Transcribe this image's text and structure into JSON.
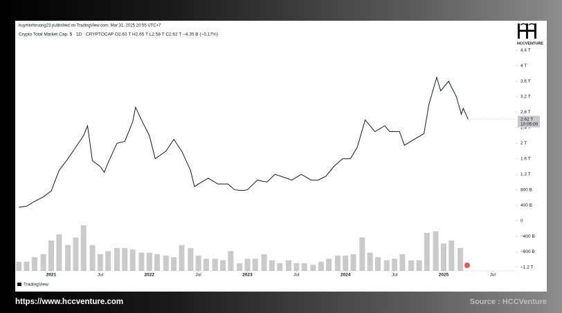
{
  "chart_data": {
    "type": "line",
    "publisher_line": "huyminhtruong23 published on TradingView.com, Mar 31, 2025 20:55 UTC+7",
    "symbol_line": "Crypto Total Market Cap, $ · 1D · CRYPTOCAP  O2.63 T  H2.65 T  L2.58 T  C2.62 T  −4.35 B (−0.17%)",
    "brand": "HCCVENTURE",
    "platform": "TradingView",
    "website": "https://www.hccventure.com",
    "source": "Source : HCCVenture",
    "last_price_label": "2.62 T",
    "last_price": 2.62,
    "countdown": "10:05:00",
    "color": "#131722",
    "volume_color": "#9e9e9e",
    "grid": false,
    "xlim": [
      2020.633,
      2025.734
    ],
    "xticks": [
      2021,
      {
        "value": 2021.5,
        "label": "Jul"
      },
      2022,
      {
        "value": 2022.5,
        "label": "Jul"
      },
      2023,
      {
        "value": 2023.5,
        "label": "Jul"
      },
      2024,
      {
        "value": 2024.5,
        "label": "Jul"
      },
      2025,
      {
        "value": 2025.5,
        "label": "Jul"
      }
    ],
    "ylim": [
      -1.29,
      4.59
    ],
    "yticks": [
      {
        "value": 4.4,
        "label": "4.4 T"
      },
      {
        "value": 4,
        "label": "4 T"
      },
      {
        "value": 3.6,
        "label": "3.6 T"
      },
      {
        "value": 3.2,
        "label": "3.2 T"
      },
      {
        "value": 2.8,
        "label": "2.8 T"
      },
      {
        "value": 2.4,
        "label": "2.4 T"
      },
      {
        "value": 2,
        "label": "2 T"
      },
      {
        "value": 1.6,
        "label": "1.6 T"
      },
      {
        "value": 1.2,
        "label": "1.2 T"
      },
      {
        "value": 0.8,
        "label": "800 B"
      },
      {
        "value": 0.4,
        "label": "400 B"
      },
      0,
      {
        "value": -0.4,
        "label": "−400 B"
      },
      {
        "value": -0.8,
        "label": "−800 B"
      },
      {
        "value": -1.2,
        "label": "−1.2 T"
      }
    ],
    "y2lim": [
      0,
      1500
    ],
    "price": {
      "x": [
        2020.67,
        2020.75,
        2020.83,
        2020.92,
        2021.0,
        2021.08,
        2021.17,
        2021.25,
        2021.33,
        2021.37,
        2021.42,
        2021.5,
        2021.54,
        2021.58,
        2021.67,
        2021.75,
        2021.83,
        2021.86,
        2021.92,
        2022.0,
        2022.06,
        2022.17,
        2022.25,
        2022.33,
        2022.42,
        2022.46,
        2022.5,
        2022.6,
        2022.7,
        2022.8,
        2022.87,
        2022.95,
        2023.0,
        2023.1,
        2023.2,
        2023.28,
        2023.4,
        2023.45,
        2023.55,
        2023.65,
        2023.72,
        2023.8,
        2023.88,
        2023.97,
        2024.05,
        2024.12,
        2024.2,
        2024.3,
        2024.4,
        2024.45,
        2024.55,
        2024.6,
        2024.7,
        2024.8,
        2024.85,
        2024.93,
        2024.97,
        2025.05,
        2025.13,
        2025.18,
        2025.2,
        2025.25
      ],
      "values": [
        0.35,
        0.38,
        0.5,
        0.62,
        0.77,
        1.3,
        1.6,
        1.9,
        2.2,
        2.45,
        1.55,
        1.4,
        1.25,
        1.5,
        2.0,
        2.05,
        2.55,
        2.93,
        2.6,
        2.2,
        1.6,
        1.8,
        2.1,
        1.8,
        1.3,
        0.88,
        0.95,
        1.1,
        0.95,
        0.95,
        0.8,
        0.78,
        0.8,
        1.05,
        1.0,
        1.2,
        1.1,
        1.05,
        1.2,
        1.05,
        1.05,
        1.15,
        1.4,
        1.6,
        1.6,
        1.9,
        2.6,
        2.3,
        2.45,
        2.3,
        2.3,
        1.95,
        2.1,
        2.25,
        3.0,
        3.7,
        3.35,
        3.6,
        3.2,
        2.75,
        2.9,
        2.62
      ]
    },
    "volume": {
      "axis": "y2",
      "x": [
        2020.67,
        2020.75,
        2020.83,
        2020.92,
        2021.0,
        2021.08,
        2021.17,
        2021.25,
        2021.33,
        2021.42,
        2021.5,
        2021.58,
        2021.67,
        2021.75,
        2021.83,
        2021.92,
        2022.0,
        2022.08,
        2022.17,
        2022.25,
        2022.33,
        2022.42,
        2022.5,
        2022.58,
        2022.67,
        2022.75,
        2022.83,
        2022.92,
        2023.0,
        2023.08,
        2023.17,
        2023.25,
        2023.33,
        2023.42,
        2023.5,
        2023.58,
        2023.67,
        2023.75,
        2023.83,
        2023.92,
        2024.0,
        2024.08,
        2024.17,
        2024.25,
        2024.33,
        2024.42,
        2024.5,
        2024.58,
        2024.67,
        2024.75,
        2024.83,
        2024.92,
        2025.0,
        2025.08,
        2025.17
      ],
      "values": [
        60,
        60,
        90,
        110,
        200,
        240,
        170,
        220,
        300,
        170,
        110,
        130,
        150,
        150,
        140,
        120,
        120,
        110,
        100,
        90,
        170,
        150,
        100,
        80,
        80,
        70,
        130,
        50,
        80,
        80,
        110,
        70,
        50,
        70,
        50,
        50,
        40,
        60,
        80,
        100,
        100,
        110,
        220,
        120,
        90,
        70,
        80,
        110,
        70,
        70,
        250,
        260,
        180,
        200,
        150
      ]
    }
  }
}
